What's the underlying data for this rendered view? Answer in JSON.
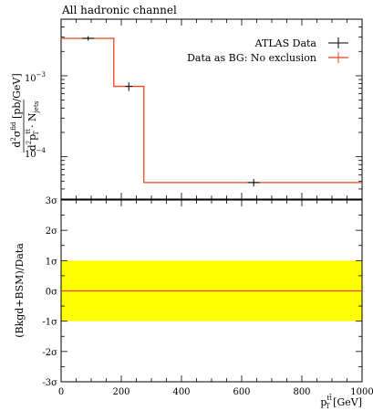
{
  "chart_data": [
    {
      "type": "line",
      "title": "All hadronic channel",
      "ylabel": "d²σ^fid / d²p_T^tt̄ · N_jets [pb/GeV]",
      "yscale": "log",
      "ylim": [
        3e-05,
        0.005
      ],
      "xlim": [
        0,
        1000
      ],
      "y_tick_labels": [
        "10⁻³",
        "10⁻⁴"
      ],
      "legend_position": "top-right",
      "series": [
        {
          "name": "ATLAS Data",
          "color": "#000000",
          "style": "points-with-error-bars",
          "points": [
            {
              "x": 90,
              "y": 0.0029,
              "xerr": 20,
              "y_low": 0.00272,
              "y_high": 0.00308
            },
            {
              "x": 225,
              "y": 0.00074,
              "xerr": 12,
              "y_low": 0.00065,
              "y_high": 0.00083
            },
            {
              "x": 640,
              "y": 4.8e-05,
              "xerr": 20,
              "y_low": 4.3e-05,
              "y_high": 5.3e-05
            }
          ]
        },
        {
          "name": "Data as BG: No exclusion",
          "color": "#ee4422",
          "style": "step",
          "bins": [
            {
              "x_low": 0,
              "x_high": 175,
              "y": 0.0029
            },
            {
              "x_low": 175,
              "x_high": 275,
              "y": 0.00074
            },
            {
              "x_low": 275,
              "x_high": 1000,
              "y": 4.8e-05
            }
          ]
        }
      ]
    },
    {
      "type": "line",
      "ylabel": "(Bkgd+BSM)/Data",
      "xlabel": "p_T^tt̄ [GeV]",
      "xlim": [
        0,
        1000
      ],
      "ylim": [
        -3,
        3
      ],
      "x_ticks": [
        0,
        200,
        400,
        600,
        800,
        1000
      ],
      "y_ticks": [
        3,
        2,
        1,
        0,
        -1,
        -2,
        -3
      ],
      "y_tick_labels": [
        "3σ",
        "2σ",
        "1σ",
        "0σ",
        "-1σ",
        "-2σ",
        "-3σ"
      ],
      "band": {
        "from": -1,
        "to": 1,
        "color": "#ffff00"
      },
      "series": [
        {
          "name": "",
          "color": "#ee4422",
          "x": [
            0,
            1000
          ],
          "y": [
            0,
            0
          ]
        }
      ]
    }
  ]
}
